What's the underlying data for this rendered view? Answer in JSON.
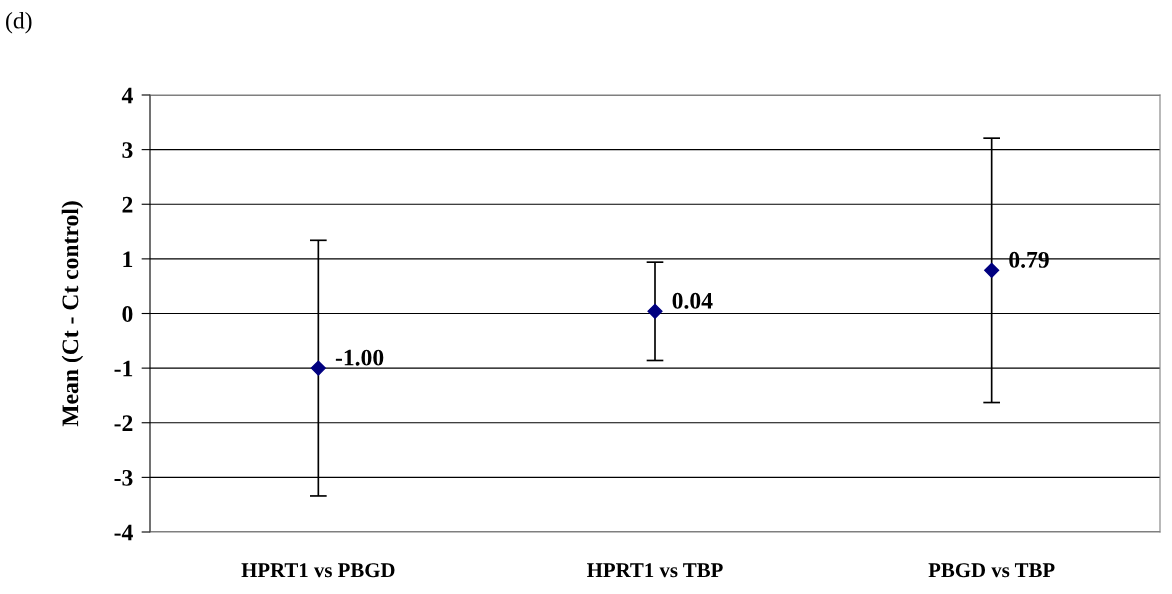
{
  "chart_data": {
    "type": "scatter",
    "title": "(d)",
    "ylabel": "Mean (Ct - Ct control)",
    "categories": [
      "HPRT1 vs PBGD",
      "HPRT1 vs TBP",
      "PBGD vs TBP"
    ],
    "series": [
      {
        "color": "#000080",
        "values": [
          -1.0,
          0.04,
          0.79
        ],
        "errors": [
          2.34,
          0.9,
          2.42
        ],
        "value_labels": [
          "-1.00",
          "0.04",
          "0.79"
        ]
      }
    ],
    "ylim": [
      -4,
      4
    ],
    "yticks": [
      -4,
      -3,
      -2,
      -1,
      0,
      1,
      2,
      3,
      4
    ],
    "grid": "y",
    "marker": "diamond",
    "legend": false
  }
}
